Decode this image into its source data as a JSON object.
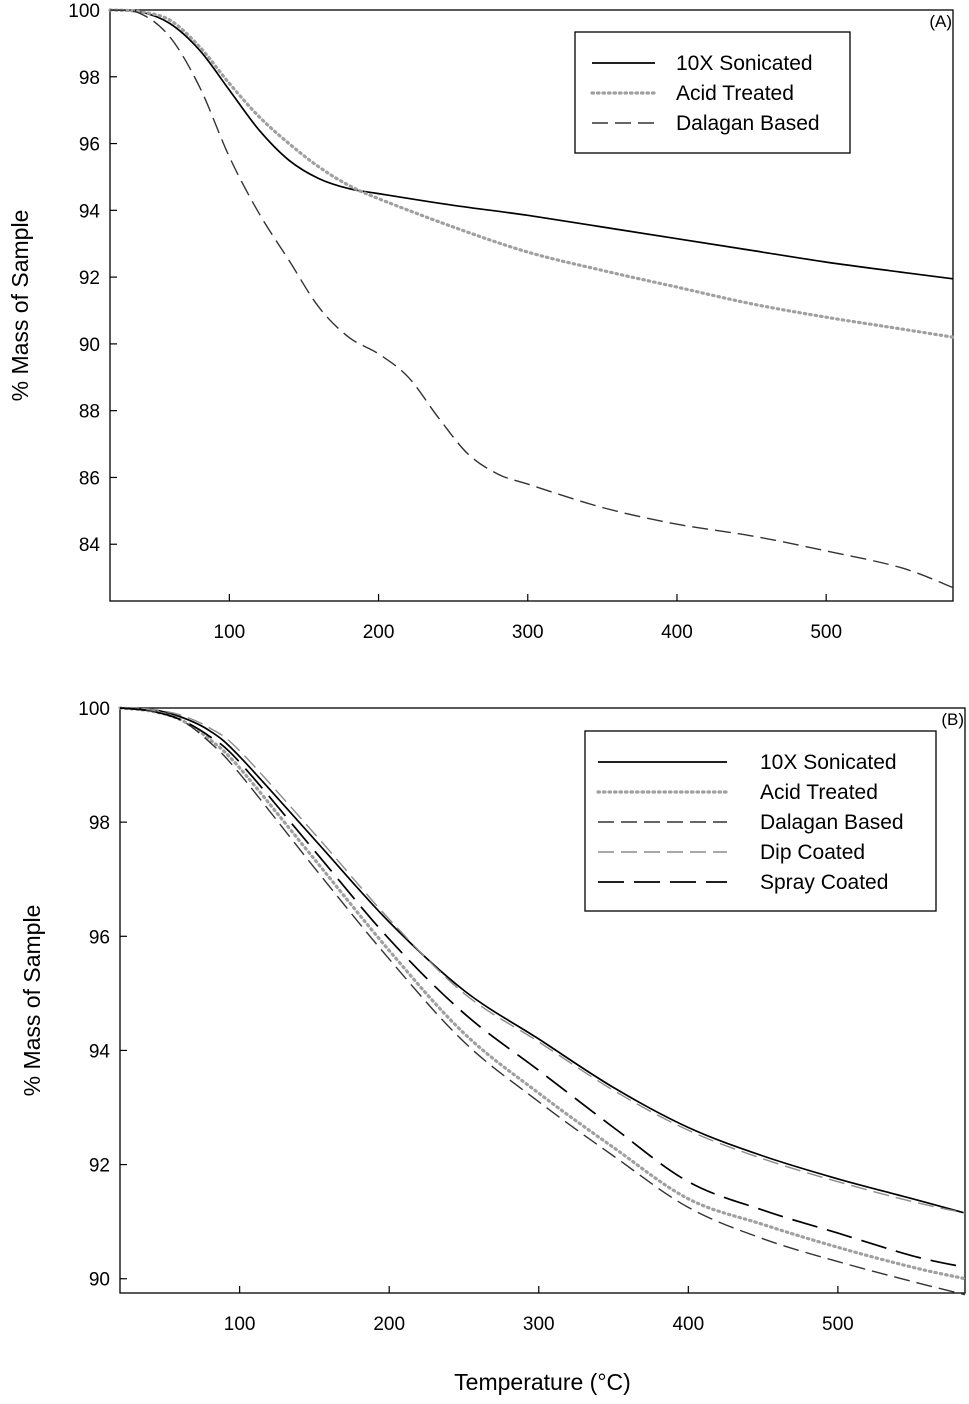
{
  "chart_data": [
    {
      "type": "line",
      "panel_label": "(A)",
      "xlabel": "",
      "ylabel": "% Mass of Sample",
      "xlim": [
        20,
        585
      ],
      "ylim": [
        82.3,
        100
      ],
      "xticks": [
        100,
        200,
        300,
        400,
        500
      ],
      "yticks": [
        84,
        86,
        88,
        90,
        92,
        94,
        96,
        98,
        100
      ],
      "grid": false,
      "legend_position": "top-right",
      "series": [
        {
          "name": "10X Sonicated",
          "style": "solid",
          "color": "#000000",
          "x": [
            20,
            40,
            60,
            80,
            100,
            120,
            140,
            160,
            180,
            200,
            250,
            300,
            350,
            400,
            450,
            500,
            550,
            585
          ],
          "y": [
            100,
            99.95,
            99.6,
            98.8,
            97.6,
            96.4,
            95.5,
            94.95,
            94.65,
            94.5,
            94.15,
            93.85,
            93.5,
            93.15,
            92.8,
            92.45,
            92.15,
            91.95
          ]
        },
        {
          "name": "Acid Treated",
          "style": "dotted",
          "color": "#a0a0a0",
          "x": [
            20,
            40,
            60,
            80,
            100,
            120,
            140,
            160,
            180,
            200,
            250,
            300,
            350,
            400,
            450,
            500,
            550,
            585
          ],
          "y": [
            100,
            99.95,
            99.7,
            98.9,
            97.8,
            96.8,
            96.0,
            95.3,
            94.75,
            94.35,
            93.5,
            92.75,
            92.2,
            91.7,
            91.2,
            90.8,
            90.45,
            90.2
          ]
        },
        {
          "name": "Dalagan Based",
          "style": "dashed",
          "color": "#333333",
          "x": [
            20,
            40,
            60,
            80,
            100,
            120,
            140,
            160,
            180,
            200,
            220,
            240,
            260,
            280,
            300,
            350,
            400,
            450,
            500,
            550,
            585
          ],
          "y": [
            100,
            99.9,
            99.2,
            97.7,
            95.6,
            93.9,
            92.5,
            91.1,
            90.2,
            89.7,
            89.0,
            87.8,
            86.7,
            86.1,
            85.8,
            85.1,
            84.6,
            84.25,
            83.8,
            83.3,
            82.7
          ]
        }
      ]
    },
    {
      "type": "line",
      "panel_label": "(B)",
      "xlabel": "Temperature (°C)",
      "ylabel": "% Mass of Sample",
      "xlim": [
        20,
        585
      ],
      "ylim": [
        89.75,
        100
      ],
      "xticks": [
        100,
        200,
        300,
        400,
        500
      ],
      "yticks": [
        90,
        92,
        94,
        96,
        98,
        100
      ],
      "grid": false,
      "legend_position": "top-right",
      "series": [
        {
          "name": "10X Sonicated",
          "style": "solid",
          "color": "#000000",
          "x": [
            20,
            40,
            60,
            80,
            100,
            150,
            200,
            250,
            300,
            350,
            400,
            450,
            500,
            550,
            585
          ],
          "y": [
            100,
            99.98,
            99.85,
            99.6,
            99.15,
            97.7,
            96.25,
            95.05,
            94.2,
            93.35,
            92.65,
            92.15,
            91.75,
            91.4,
            91.15
          ]
        },
        {
          "name": "Acid Treated",
          "style": "dotted",
          "color": "#a0a0a0",
          "x": [
            20,
            40,
            60,
            80,
            100,
            150,
            200,
            250,
            300,
            350,
            400,
            450,
            500,
            550,
            585
          ],
          "y": [
            100,
            99.95,
            99.8,
            99.45,
            98.95,
            97.35,
            95.75,
            94.3,
            93.25,
            92.3,
            91.4,
            90.95,
            90.55,
            90.2,
            90.0
          ]
        },
        {
          "name": "Dalagan Based",
          "style": "dashed",
          "color": "#333333",
          "x": [
            20,
            40,
            60,
            80,
            100,
            150,
            200,
            250,
            300,
            350,
            400,
            450,
            500,
            550,
            585
          ],
          "y": [
            100,
            99.95,
            99.8,
            99.4,
            98.85,
            97.2,
            95.6,
            94.15,
            93.1,
            92.15,
            91.25,
            90.7,
            90.3,
            89.95,
            89.72
          ]
        },
        {
          "name": "Dip Coated",
          "style": "dashed",
          "color": "#8c8c8c",
          "x": [
            20,
            40,
            60,
            80,
            100,
            150,
            200,
            250,
            300,
            350,
            400,
            450,
            500,
            550,
            585
          ],
          "y": [
            100,
            99.98,
            99.88,
            99.65,
            99.25,
            97.8,
            96.3,
            95.0,
            94.15,
            93.3,
            92.6,
            92.1,
            91.7,
            91.35,
            91.15
          ]
        },
        {
          "name": "Spray Coated",
          "style": "long-dashed",
          "color": "#000000",
          "x": [
            20,
            40,
            60,
            80,
            100,
            150,
            200,
            250,
            300,
            350,
            400,
            450,
            500,
            550,
            585
          ],
          "y": [
            100,
            99.95,
            99.8,
            99.5,
            99.05,
            97.5,
            95.95,
            94.65,
            93.65,
            92.65,
            91.7,
            91.2,
            90.8,
            90.4,
            90.2
          ]
        }
      ]
    }
  ]
}
